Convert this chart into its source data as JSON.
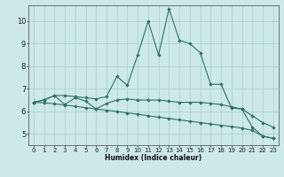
{
  "xlabel": "Humidex (Indice chaleur)",
  "bg_color": "#cce8e8",
  "line_color": "#2d7060",
  "grid_color": "#aacccc",
  "xlim": [
    -0.5,
    23.5
  ],
  "ylim": [
    4.5,
    10.7
  ],
  "yticks": [
    5,
    6,
    7,
    8,
    9,
    10
  ],
  "xticks": [
    0,
    1,
    2,
    3,
    4,
    5,
    6,
    7,
    8,
    9,
    10,
    11,
    12,
    13,
    14,
    15,
    16,
    17,
    18,
    19,
    20,
    21,
    22,
    23
  ],
  "line1_x": [
    0,
    1,
    2,
    3,
    4,
    5,
    6,
    7,
    8,
    9,
    10,
    11,
    12,
    13,
    14,
    15,
    16,
    17,
    18,
    19,
    20,
    21,
    22,
    23
  ],
  "line1_y": [
    6.4,
    6.5,
    6.7,
    6.7,
    6.65,
    6.6,
    6.55,
    6.65,
    7.55,
    7.15,
    8.5,
    10.0,
    8.5,
    10.55,
    9.15,
    9.0,
    8.6,
    7.2,
    7.2,
    6.15,
    6.1,
    5.3,
    4.9,
    4.8
  ],
  "line2_x": [
    0,
    1,
    2,
    3,
    4,
    5,
    6,
    7,
    8,
    9,
    10,
    11,
    12,
    13,
    14,
    15,
    16,
    17,
    18,
    19,
    20,
    21,
    22,
    23
  ],
  "line2_y": [
    6.4,
    6.5,
    6.7,
    6.3,
    6.6,
    6.45,
    6.1,
    6.35,
    6.5,
    6.55,
    6.5,
    6.5,
    6.5,
    6.45,
    6.4,
    6.4,
    6.4,
    6.35,
    6.3,
    6.2,
    6.1,
    5.8,
    5.5,
    5.3
  ],
  "line3_x": [
    0,
    1,
    2,
    3,
    4,
    5,
    6,
    7,
    8,
    9,
    10,
    11,
    12,
    13,
    14,
    15,
    16,
    17,
    18,
    19,
    20,
    21,
    22,
    23
  ],
  "line3_y": [
    6.4,
    6.38,
    6.33,
    6.28,
    6.22,
    6.16,
    6.1,
    6.05,
    5.99,
    5.93,
    5.87,
    5.8,
    5.74,
    5.68,
    5.62,
    5.56,
    5.5,
    5.44,
    5.38,
    5.32,
    5.26,
    5.15,
    4.9,
    4.8
  ]
}
